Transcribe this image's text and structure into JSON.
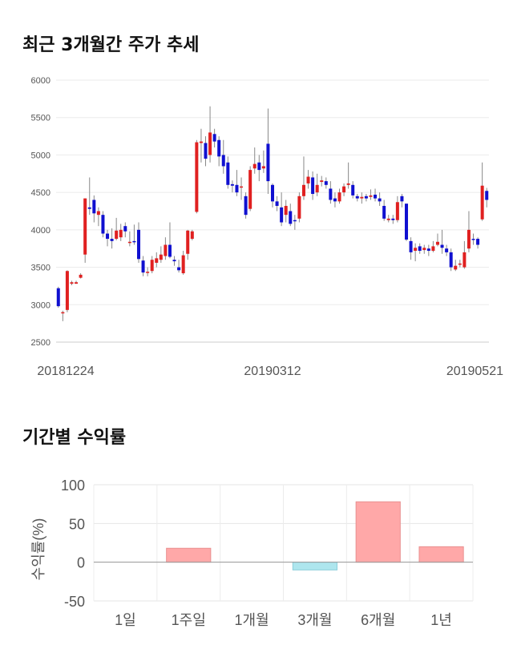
{
  "sections": {
    "price_title": "최근 3개월간 주가 추세",
    "returns_title": "기간별 수익률"
  },
  "chart_data": [
    {
      "type": "candlestick",
      "ylim": [
        2500,
        6000
      ],
      "y_ticks": [
        "6000",
        "5500",
        "5000",
        "4500",
        "4000",
        "3500",
        "3000",
        "2500"
      ],
      "x_labels": [
        "20181224",
        "20190312",
        "20190521"
      ],
      "up_color": "#e02020",
      "down_color": "#1010d0",
      "grid": true,
      "candles": [
        [
          3220,
          2980,
          3240,
          2960
        ],
        [
          2900,
          2900,
          2920,
          2780
        ],
        [
          2930,
          3450,
          3460,
          2900
        ],
        [
          3280,
          3300,
          3320,
          3260
        ],
        [
          3280,
          3300,
          3320,
          3280
        ],
        [
          3360,
          3400,
          3420,
          3350
        ],
        [
          3670,
          4420,
          4420,
          3560
        ],
        [
          4300,
          4280,
          4700,
          4200
        ],
        [
          4400,
          4220,
          4460,
          4100
        ],
        [
          4200,
          4250,
          4300,
          4050
        ],
        [
          4200,
          3950,
          4250,
          3900
        ],
        [
          3950,
          3880,
          4000,
          3780
        ],
        [
          3880,
          3850,
          4020,
          3750
        ],
        [
          3880,
          3990,
          4160,
          3860
        ],
        [
          3900,
          4000,
          4080,
          3850
        ],
        [
          4050,
          3980,
          4100,
          3900
        ],
        [
          3830,
          3840,
          3980,
          3780
        ],
        [
          3850,
          3840,
          4070,
          3800
        ],
        [
          4000,
          3610,
          4100,
          3560
        ],
        [
          3590,
          3430,
          3650,
          3380
        ],
        [
          3430,
          3440,
          3500,
          3380
        ],
        [
          3450,
          3600,
          3650,
          3420
        ],
        [
          3560,
          3620,
          3700,
          3500
        ],
        [
          3600,
          3670,
          3780,
          3560
        ],
        [
          3650,
          3800,
          3900,
          3600
        ],
        [
          3800,
          3640,
          4100,
          3620
        ],
        [
          3600,
          3580,
          3650,
          3520
        ],
        [
          3500,
          3460,
          3600,
          3430
        ],
        [
          3420,
          3660,
          3720,
          3400
        ],
        [
          3680,
          3990,
          4000,
          3600
        ],
        [
          3880,
          3980,
          4000,
          3860
        ],
        [
          4240,
          5170,
          5200,
          4220
        ],
        [
          5160,
          5180,
          5350,
          4900
        ],
        [
          5160,
          4950,
          5250,
          4850
        ],
        [
          5000,
          5300,
          5650,
          4900
        ],
        [
          5280,
          5180,
          5350,
          5100
        ],
        [
          5200,
          4980,
          5250,
          4850
        ],
        [
          5000,
          4850,
          5200,
          4750
        ],
        [
          4900,
          4600,
          4980,
          4550
        ],
        [
          4610,
          4590,
          4660,
          4500
        ],
        [
          4600,
          4500,
          4800,
          4450
        ],
        [
          4580,
          4580,
          4700,
          4400
        ],
        [
          4450,
          4200,
          4500,
          4150
        ],
        [
          4280,
          4800,
          4850,
          4250
        ],
        [
          4820,
          4880,
          5100,
          4750
        ],
        [
          4900,
          4800,
          5000,
          4650
        ],
        [
          4820,
          4850,
          5060,
          4760
        ],
        [
          5150,
          4650,
          5620,
          4480
        ],
        [
          4600,
          4380,
          4620,
          4300
        ],
        [
          4380,
          4320,
          4450,
          4250
        ],
        [
          4300,
          4100,
          4500,
          4050
        ],
        [
          4200,
          4320,
          4400,
          4100
        ],
        [
          4250,
          4080,
          4350,
          4050
        ],
        [
          4130,
          4120,
          4200,
          4000
        ],
        [
          4150,
          4450,
          4500,
          4100
        ],
        [
          4450,
          4600,
          4980,
          4400
        ],
        [
          4620,
          4710,
          4800,
          4550
        ],
        [
          4700,
          4480,
          4780,
          4400
        ],
        [
          4500,
          4600,
          4750,
          4450
        ],
        [
          4640,
          4660,
          4720,
          4580
        ],
        [
          4650,
          4600,
          4700,
          4550
        ],
        [
          4550,
          4400,
          4650,
          4350
        ],
        [
          4420,
          4380,
          4500,
          4300
        ],
        [
          4380,
          4500,
          4550,
          4350
        ],
        [
          4500,
          4580,
          4620,
          4450
        ],
        [
          4600,
          4620,
          4900,
          4550
        ],
        [
          4600,
          4460,
          4650,
          4420
        ],
        [
          4450,
          4420,
          4480,
          4380
        ],
        [
          4420,
          4440,
          4500,
          4350
        ],
        [
          4450,
          4420,
          4480,
          4380
        ],
        [
          4440,
          4460,
          4540,
          4400
        ],
        [
          4470,
          4420,
          4550,
          4380
        ],
        [
          4420,
          4380,
          4500,
          4320
        ],
        [
          4320,
          4150,
          4400,
          4120
        ],
        [
          4130,
          4150,
          4200,
          4100
        ],
        [
          4150,
          4130,
          4200,
          4080
        ],
        [
          4130,
          4370,
          4450,
          4100
        ],
        [
          4450,
          4380,
          4480,
          4300
        ],
        [
          4350,
          3870,
          4350,
          3850
        ],
        [
          3850,
          3700,
          3900,
          3600
        ],
        [
          3720,
          3760,
          3820,
          3580
        ],
        [
          3780,
          3720,
          3820,
          3680
        ],
        [
          3730,
          3760,
          3800,
          3680
        ],
        [
          3750,
          3720,
          3800,
          3650
        ],
        [
          3720,
          3780,
          3850,
          3700
        ],
        [
          3800,
          3840,
          3950,
          3780
        ],
        [
          3800,
          3760,
          4000,
          3680
        ],
        [
          3750,
          3700,
          3800,
          3650
        ],
        [
          3700,
          3500,
          3750,
          3450
        ],
        [
          3470,
          3520,
          3600,
          3450
        ],
        [
          3540,
          3550,
          3600,
          3500
        ],
        [
          3500,
          3700,
          3850,
          3480
        ],
        [
          3750,
          4000,
          4250,
          3700
        ],
        [
          3880,
          3870,
          3950,
          3800
        ],
        [
          3880,
          3800,
          3900,
          3750
        ],
        [
          4140,
          4590,
          4900,
          4120
        ],
        [
          4520,
          4400,
          4560,
          4300
        ]
      ]
    },
    {
      "type": "bar",
      "categories": [
        "1일",
        "1주일",
        "1개월",
        "3개월",
        "6개월",
        "1년"
      ],
      "values": [
        0,
        18,
        0,
        -10,
        78,
        20
      ],
      "ylabel": "수익률(%)",
      "ylim": [
        -50,
        100
      ],
      "y_ticks": [
        "100",
        "50",
        "0",
        "-50"
      ],
      "positive_color": "#ffa8a8",
      "negative_color": "#aee6ee",
      "grid": true
    }
  ]
}
